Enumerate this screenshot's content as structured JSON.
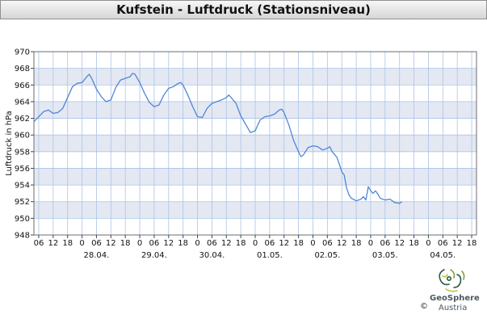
{
  "header": {
    "title": "Kufstein - Luftdruck (Stationsniveau)"
  },
  "brand": {
    "name": "GeoSphere",
    "sub": "Austria",
    "copyright": "©"
  },
  "colors": {
    "line": "#4f86d8",
    "band": "#e4e8f2",
    "grid": "#aac4e6"
  },
  "chart_data": {
    "type": "line",
    "title": "Kufstein - Luftdruck (Stationsniveau)",
    "ylabel": "Luftdruck in hPa",
    "xlabel": "",
    "ylim": [
      948,
      970
    ],
    "yticks": [
      948,
      950,
      952,
      954,
      956,
      958,
      960,
      962,
      964,
      966,
      968,
      970
    ],
    "xlim": [
      4,
      175
    ],
    "hour_ticks": [
      {
        "h": 6,
        "label": "06"
      },
      {
        "h": 12,
        "label": "12"
      },
      {
        "h": 18,
        "label": "18"
      },
      {
        "h": 24,
        "label": "0"
      },
      {
        "h": 30,
        "label": "06"
      },
      {
        "h": 36,
        "label": "12"
      },
      {
        "h": 42,
        "label": "18"
      },
      {
        "h": 48,
        "label": "0"
      },
      {
        "h": 54,
        "label": "06"
      },
      {
        "h": 60,
        "label": "12"
      },
      {
        "h": 66,
        "label": "18"
      },
      {
        "h": 72,
        "label": "0"
      },
      {
        "h": 78,
        "label": "06"
      },
      {
        "h": 84,
        "label": "12"
      },
      {
        "h": 90,
        "label": "18"
      },
      {
        "h": 96,
        "label": "0"
      },
      {
        "h": 102,
        "label": "06"
      },
      {
        "h": 108,
        "label": "12"
      },
      {
        "h": 114,
        "label": "18"
      },
      {
        "h": 120,
        "label": "0"
      },
      {
        "h": 126,
        "label": "06"
      },
      {
        "h": 132,
        "label": "12"
      },
      {
        "h": 138,
        "label": "18"
      },
      {
        "h": 144,
        "label": "0"
      },
      {
        "h": 150,
        "label": "06"
      },
      {
        "h": 156,
        "label": "12"
      },
      {
        "h": 162,
        "label": "18"
      },
      {
        "h": 168,
        "label": "0"
      },
      {
        "h": 174,
        "label": "06"
      },
      {
        "h": 180,
        "label": "12"
      },
      {
        "h": 186,
        "label": "18"
      }
    ],
    "day_labels": [
      {
        "h": 30,
        "label": "28.04."
      },
      {
        "h": 54,
        "label": "29.04."
      },
      {
        "h": 78,
        "label": "30.04."
      },
      {
        "h": 102,
        "label": "01.05."
      },
      {
        "h": 126,
        "label": "02.05."
      },
      {
        "h": 150,
        "label": "03.05."
      },
      {
        "h": 174,
        "label": "04.05."
      }
    ],
    "series": [
      {
        "values": [
          [
            4,
            961.6
          ],
          [
            6,
            962.2
          ],
          [
            8,
            962.8
          ],
          [
            10,
            963.0
          ],
          [
            12,
            962.6
          ],
          [
            14,
            962.7
          ],
          [
            16,
            963.2
          ],
          [
            18,
            964.5
          ],
          [
            20,
            965.8
          ],
          [
            22,
            966.2
          ],
          [
            24,
            966.3
          ],
          [
            26,
            967.0
          ],
          [
            27,
            967.3
          ],
          [
            28,
            966.8
          ],
          [
            30,
            965.5
          ],
          [
            32,
            964.6
          ],
          [
            34,
            964.0
          ],
          [
            36,
            964.2
          ],
          [
            38,
            965.7
          ],
          [
            40,
            966.6
          ],
          [
            42,
            966.8
          ],
          [
            44,
            967.0
          ],
          [
            45,
            967.4
          ],
          [
            46,
            967.3
          ],
          [
            48,
            966.3
          ],
          [
            50,
            965.0
          ],
          [
            52,
            963.9
          ],
          [
            54,
            963.4
          ],
          [
            56,
            963.6
          ],
          [
            58,
            964.8
          ],
          [
            60,
            965.6
          ],
          [
            62,
            965.8
          ],
          [
            64,
            966.2
          ],
          [
            65,
            966.3
          ],
          [
            66,
            966.0
          ],
          [
            68,
            964.8
          ],
          [
            70,
            963.4
          ],
          [
            72,
            962.2
          ],
          [
            74,
            962.1
          ],
          [
            76,
            963.2
          ],
          [
            78,
            963.8
          ],
          [
            80,
            964.0
          ],
          [
            82,
            964.2
          ],
          [
            84,
            964.5
          ],
          [
            85,
            964.8
          ],
          [
            86,
            964.5
          ],
          [
            88,
            963.8
          ],
          [
            90,
            962.3
          ],
          [
            92,
            961.3
          ],
          [
            94,
            960.3
          ],
          [
            96,
            960.5
          ],
          [
            98,
            961.8
          ],
          [
            100,
            962.2
          ],
          [
            102,
            962.3
          ],
          [
            104,
            962.5
          ],
          [
            106,
            963.0
          ],
          [
            107,
            963.1
          ],
          [
            108,
            962.7
          ],
          [
            110,
            961.2
          ],
          [
            112,
            959.3
          ],
          [
            114,
            958.0
          ],
          [
            115,
            957.4
          ],
          [
            116,
            957.6
          ],
          [
            118,
            958.5
          ],
          [
            120,
            958.7
          ],
          [
            122,
            958.6
          ],
          [
            124,
            958.2
          ],
          [
            126,
            958.4
          ],
          [
            127,
            958.6
          ],
          [
            128,
            958.0
          ],
          [
            130,
            957.3
          ],
          [
            132,
            955.6
          ],
          [
            133,
            955.2
          ],
          [
            134,
            953.6
          ],
          [
            135,
            952.8
          ],
          [
            136,
            952.4
          ],
          [
            138,
            952.1
          ],
          [
            140,
            952.3
          ],
          [
            141,
            952.6
          ],
          [
            142,
            952.2
          ],
          [
            143,
            953.8
          ],
          [
            144,
            953.3
          ],
          [
            145,
            953.0
          ],
          [
            146,
            953.3
          ],
          [
            147,
            952.9
          ],
          [
            148,
            952.4
          ],
          [
            150,
            952.2
          ],
          [
            152,
            952.3
          ],
          [
            154,
            951.9
          ],
          [
            156,
            951.8
          ],
          [
            157,
            952.0
          ]
        ]
      }
    ],
    "grid": true
  }
}
